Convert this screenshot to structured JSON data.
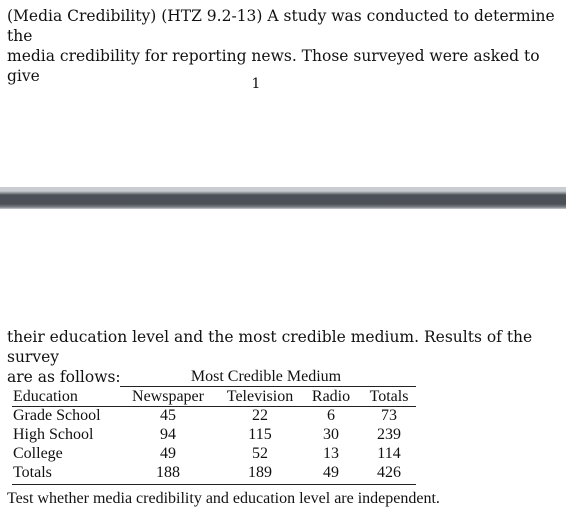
{
  "intro": {
    "line1": "(Media Credibility) (HTZ 9.2-13) A study was conducted to determine the",
    "line2": "media credibility for reporting news.  Those surveyed were asked to give"
  },
  "page_number": "1",
  "continuation": {
    "line1": "their education level and the most credible medium.  Results of the survey",
    "line2": "are as follows:"
  },
  "table": {
    "group_header": "Most Credible Medium",
    "row_header": "Education",
    "columns": [
      "Newspaper",
      "Television",
      "Radio",
      "Totals"
    ],
    "rows": [
      {
        "label": "Grade School",
        "values": [
          "45",
          "22",
          "6",
          "73"
        ]
      },
      {
        "label": "High School",
        "values": [
          "94",
          "115",
          "30",
          "239"
        ]
      },
      {
        "label": "College",
        "values": [
          "49",
          "52",
          "13",
          "114"
        ]
      },
      {
        "label": "Totals",
        "values": [
          "188",
          "189",
          "49",
          "426"
        ]
      }
    ]
  },
  "question": "Test whether media credibility and education level are independent."
}
